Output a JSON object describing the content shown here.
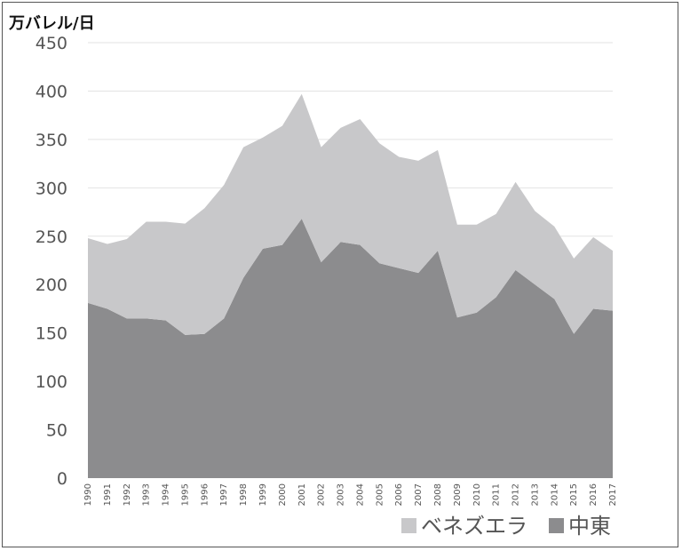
{
  "chart_data": {
    "type": "area",
    "stacked": true,
    "unit_label": "万バレル/日",
    "x": [
      "1990",
      "1991",
      "1992",
      "1993",
      "1994",
      "1995",
      "1996",
      "1997",
      "1998",
      "1999",
      "2000",
      "2001",
      "2002",
      "2003",
      "2004",
      "2005",
      "2006",
      "2007",
      "2008",
      "2009",
      "2010",
      "2011",
      "2012",
      "2013",
      "2014",
      "2015",
      "2016",
      "2017"
    ],
    "series": [
      {
        "name": "中東",
        "color": "#8c8c8e",
        "values": [
          181,
          175,
          165,
          165,
          163,
          148,
          149,
          165,
          207,
          237,
          241,
          268,
          223,
          244,
          241,
          222,
          217,
          212,
          235,
          166,
          171,
          187,
          215,
          200,
          185,
          149,
          175,
          173
        ]
      },
      {
        "name": "ベネズエラ",
        "color": "#c8c8ca",
        "values": [
          67,
          67,
          82,
          100,
          102,
          115,
          130,
          138,
          135,
          115,
          123,
          129,
          119,
          118,
          130,
          124,
          115,
          116,
          104,
          96,
          91,
          86,
          91,
          76,
          75,
          78,
          74,
          62
        ]
      }
    ],
    "ylim": [
      0,
      450
    ],
    "yticks": [
      0,
      50,
      100,
      150,
      200,
      250,
      300,
      350,
      400,
      450
    ],
    "grid": true,
    "legend_position": "bottom-right"
  }
}
